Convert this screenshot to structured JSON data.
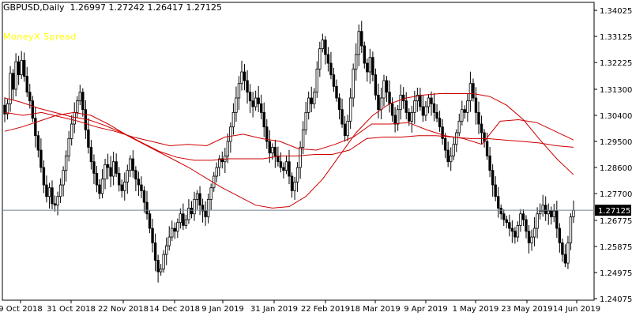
{
  "window": {
    "title": "GBPUSD,Daily",
    "ohlc_text": "1.26997 1.27242 1.26417 1.27125",
    "indicator_label": "MoneyX Spread",
    "indicator_color": "#ffff00"
  },
  "chart_data": {
    "type": "candlestick",
    "symbol": "GBPUSD",
    "timeframe": "Daily",
    "ylim": [
      1.2402,
      1.343
    ],
    "y_ticks": [
      "1.34025",
      "1.33125",
      "1.32225",
      "1.31300",
      "1.30400",
      "1.29500",
      "1.28600",
      "1.27700",
      "1.26775",
      "1.25875",
      "1.24975",
      "1.24075"
    ],
    "x_ticks": [
      "9 Oct 2018",
      "31 Oct 2018",
      "22 Nov 2018",
      "14 Dec 2018",
      "9 Jan 2019",
      "31 Jan 2019",
      "22 Feb 2019",
      "18 Mar 2019",
      "9 Apr 2019",
      "1 May 2019",
      "23 May 2019",
      "14 Jun 2019"
    ],
    "current_price": "1.27125",
    "current_price_value": 1.27125,
    "colors": {
      "up_body": "#ffffff",
      "down_body": "#000000",
      "candle_outline": "#000000",
      "ma": "#cc0000",
      "price_line": "#708090",
      "grid": "#c8c8c8"
    },
    "closes": [
      1.3045,
      1.308,
      1.3185,
      1.313,
      1.3225,
      1.318,
      1.323,
      1.3175,
      1.312,
      1.309,
      1.303,
      1.297,
      1.292,
      1.286,
      1.28,
      1.276,
      1.279,
      1.2735,
      1.273,
      1.276,
      1.28,
      1.285,
      1.29,
      1.296,
      1.301,
      1.305,
      1.309,
      1.312,
      1.306,
      1.299,
      1.293,
      1.288,
      1.284,
      1.28,
      1.277,
      1.282,
      1.287,
      1.286,
      1.283,
      1.288,
      1.284,
      1.28,
      1.278,
      1.281,
      1.285,
      1.289,
      1.285,
      1.282,
      1.28,
      1.278,
      1.274,
      1.27,
      1.265,
      1.26,
      1.254,
      1.25,
      1.251,
      1.256,
      1.259,
      1.262,
      1.265,
      1.264,
      1.267,
      1.27,
      1.266,
      1.268,
      1.272,
      1.27,
      1.275,
      1.277,
      1.273,
      1.271,
      1.269,
      1.275,
      1.279,
      1.283,
      1.286,
      1.289,
      1.288,
      1.29,
      1.295,
      1.3,
      1.305,
      1.31,
      1.315,
      1.319,
      1.316,
      1.312,
      1.309,
      1.307,
      1.31,
      1.308,
      1.305,
      1.3,
      1.295,
      1.291,
      1.293,
      1.29,
      1.288,
      1.286,
      1.285,
      1.288,
      1.283,
      1.278,
      1.281,
      1.286,
      1.293,
      1.299,
      1.305,
      1.31,
      1.308,
      1.312,
      1.32,
      1.327,
      1.33,
      1.325,
      1.322,
      1.318,
      1.314,
      1.31,
      1.306,
      1.301,
      1.297,
      1.302,
      1.31,
      1.32,
      1.325,
      1.333,
      1.328,
      1.322,
      1.319,
      1.324,
      1.318,
      1.311,
      1.306,
      1.31,
      1.316,
      1.312,
      1.308,
      1.304,
      1.301,
      1.306,
      1.311,
      1.309,
      1.305,
      1.302,
      1.305,
      1.309,
      1.311,
      1.307,
      1.304,
      1.307,
      1.31,
      1.308,
      1.305,
      1.303,
      1.3,
      1.296,
      1.292,
      1.288,
      1.29,
      1.294,
      1.298,
      1.302,
      1.306,
      1.305,
      1.309,
      1.315,
      1.31,
      1.305,
      1.301,
      1.298,
      1.295,
      1.29,
      1.285,
      1.28,
      1.276,
      1.272,
      1.27,
      1.268,
      1.267,
      1.265,
      1.264,
      1.262,
      1.266,
      1.27,
      1.268,
      1.264,
      1.26,
      1.262,
      1.265,
      1.27,
      1.271,
      1.273,
      1.27,
      1.271,
      1.269,
      1.271,
      1.265,
      1.26,
      1.256,
      1.253,
      1.26,
      1.269,
      1.2712
    ],
    "moving_averages": [
      {
        "period": 200,
        "values": [
          1.2985,
          1.3,
          1.302,
          1.304,
          1.305,
          1.304,
          1.301,
          1.2975,
          1.2945,
          1.2915,
          1.2895,
          1.2885,
          1.2885,
          1.289,
          1.289,
          1.289,
          1.29,
          1.29,
          1.2905,
          1.2905,
          1.292,
          1.296,
          1.2965,
          1.2965,
          1.297,
          1.297,
          1.2965,
          1.296,
          1.296,
          1.2955,
          1.295,
          1.2945,
          1.2935,
          1.293
        ]
      },
      {
        "period": 100,
        "values": [
          1.31,
          1.3085,
          1.3065,
          1.305,
          1.3035,
          1.3025,
          1.3005,
          1.298,
          1.295,
          1.292,
          1.289,
          1.286,
          1.2825,
          1.279,
          1.276,
          1.273,
          1.272,
          1.2725,
          1.276,
          1.282,
          1.29,
          1.298,
          1.304,
          1.308,
          1.31,
          1.311,
          1.3115,
          1.3115,
          1.3115,
          1.3105,
          1.3075,
          1.3025,
          1.2955,
          1.289,
          1.2835
        ]
      },
      {
        "period": 50,
        "values": [
          1.305,
          1.304,
          1.305,
          1.3035,
          1.302,
          1.3,
          1.2985,
          1.2965,
          1.295,
          1.2935,
          1.294,
          1.2935,
          1.2965,
          1.2975,
          1.296,
          1.295,
          1.2925,
          1.292,
          1.294,
          1.2965,
          1.301,
          1.301,
          1.3015,
          1.299,
          1.297,
          1.296,
          1.294,
          1.302,
          1.3025,
          1.3015,
          1.2985,
          1.2955
        ]
      }
    ]
  }
}
